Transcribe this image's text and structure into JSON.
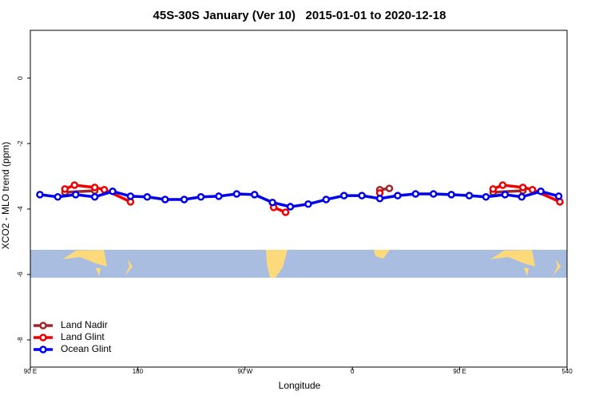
{
  "chart_data": {
    "type": "line",
    "title": "45S-30S January (Ver 10)   2015-01-01 to 2020-12-18",
    "xlabel": "Longitude",
    "ylabel": "XCO2 - MLO trend (ppm)",
    "xlim": [
      90,
      540
    ],
    "xticks": [
      {
        "value": 90,
        "label": "90 E"
      },
      180,
      {
        "value": 270,
        "label": "90 W"
      },
      {
        "value": 360,
        "label": "0"
      },
      {
        "value": 450,
        "label": "90 E"
      },
      540
    ],
    "ylim": [
      -8.83,
      1.46
    ],
    "yticks": [
      0,
      -2,
      -4,
      -6,
      -8
    ],
    "legend": "bottom-left",
    "series": [
      {
        "name": "Land Nadir",
        "color": "#a0262c",
        "x": [
          119,
          144,
          null,
          383,
          391,
          null,
          478,
          503
        ],
        "values": [
          -3.49,
          -3.44,
          null,
          -3.41,
          -3.37,
          null,
          -3.49,
          -3.44
        ]
      },
      {
        "name": "Land Glint",
        "color": "#ee0000",
        "x": [
          119,
          127,
          144,
          152,
          174,
          null,
          294,
          304,
          null,
          383,
          null,
          478,
          486,
          503,
          511,
          534
        ],
        "values": [
          -3.39,
          -3.27,
          -3.34,
          -3.41,
          -3.78,
          null,
          -3.95,
          -4.1,
          null,
          -3.51,
          null,
          -3.39,
          -3.27,
          -3.34,
          -3.41,
          -3.78
        ]
      },
      {
        "name": "Ocean Glint",
        "color": "#0000ee",
        "x": [
          98,
          113,
          128,
          144,
          159,
          174,
          188,
          203,
          219,
          233,
          248,
          263,
          278,
          293,
          308,
          323,
          338,
          353,
          368,
          383,
          398,
          413,
          428,
          443,
          458,
          472,
          488,
          502,
          518,
          533
        ],
        "values": [
          -3.56,
          -3.63,
          -3.56,
          -3.63,
          -3.46,
          -3.61,
          -3.63,
          -3.71,
          -3.71,
          -3.63,
          -3.61,
          -3.54,
          -3.56,
          -3.8,
          -3.93,
          -3.85,
          -3.71,
          -3.59,
          -3.59,
          -3.68,
          -3.59,
          -3.54,
          -3.54,
          -3.56,
          -3.59,
          -3.63,
          -3.56,
          -3.63,
          -3.46,
          -3.61
        ]
      }
    ]
  }
}
